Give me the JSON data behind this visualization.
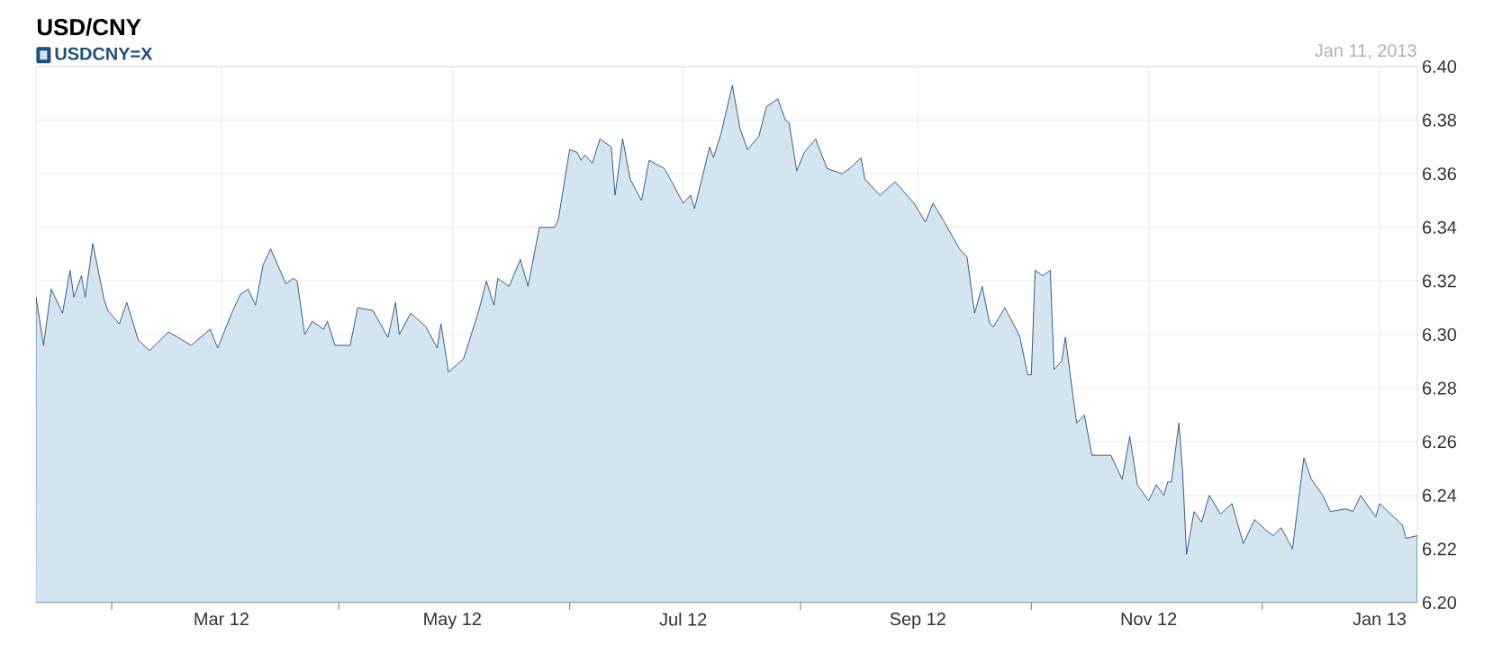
{
  "chart_data": {
    "type": "area",
    "title": "USD/CNY",
    "annotations": [
      "Jan 11, 2013"
    ],
    "legend": "top left",
    "grid": true,
    "xlim": [
      "2012-01-12",
      "2013-01-11"
    ],
    "xticks": [
      {
        "value": "2012-02-01",
        "label": null
      },
      {
        "value": "2012-03-01",
        "label": "Mar 12"
      },
      {
        "value": "2012-04-01",
        "label": null
      },
      {
        "value": "2012-05-01",
        "label": "May 12"
      },
      {
        "value": "2012-06-01",
        "label": null
      },
      {
        "value": "2012-07-01",
        "label": "Jul 12"
      },
      {
        "value": "2012-08-01",
        "label": null
      },
      {
        "value": "2012-09-01",
        "label": "Sep 12"
      },
      {
        "value": "2012-10-01",
        "label": null
      },
      {
        "value": "2012-11-01",
        "label": "Nov 12"
      },
      {
        "value": "2012-12-01",
        "label": null
      },
      {
        "value": "2013-01-01",
        "label": "Jan 13"
      }
    ],
    "ylim": [
      6.2,
      6.4
    ],
    "yticks": [
      {
        "value": 6.2,
        "label": "6.20"
      },
      6.22,
      6.24,
      6.26,
      6.28,
      {
        "value": 6.3,
        "label": "6.30"
      },
      6.32,
      6.34,
      6.36,
      6.38,
      {
        "value": 6.4,
        "label": "6.40"
      }
    ],
    "series": [
      {
        "name": "USDCNY=X",
        "color": "#d5e5f0",
        "x": [
          "2012-01-12",
          "2012-01-14",
          "2012-01-16",
          "2012-01-19",
          "2012-01-21",
          "2012-01-22",
          "2012-01-24",
          "2012-01-25",
          "2012-01-27",
          "2012-01-30",
          "2012-01-31",
          "2012-02-03",
          "2012-02-05",
          "2012-02-08",
          "2012-02-11",
          "2012-02-16",
          "2012-02-22",
          "2012-02-27",
          "2012-02-29",
          "2012-03-04",
          "2012-03-06",
          "2012-03-08",
          "2012-03-10",
          "2012-03-12",
          "2012-03-14",
          "2012-03-18",
          "2012-03-20",
          "2012-03-21",
          "2012-03-23",
          "2012-03-25",
          "2012-03-28",
          "2012-03-29",
          "2012-03-31",
          "2012-04-04",
          "2012-04-06",
          "2012-04-10",
          "2012-04-14",
          "2012-04-16",
          "2012-04-17",
          "2012-04-20",
          "2012-04-24",
          "2012-04-27",
          "2012-04-28",
          "2012-04-30",
          "2012-05-04",
          "2012-05-08",
          "2012-05-10",
          "2012-05-12",
          "2012-05-13",
          "2012-05-16",
          "2012-05-19",
          "2012-05-21",
          "2012-05-24",
          "2012-05-28",
          "2012-05-29",
          "2012-06-01",
          "2012-06-03",
          "2012-06-04",
          "2012-06-05",
          "2012-06-07",
          "2012-06-09",
          "2012-06-12",
          "2012-06-13",
          "2012-06-15",
          "2012-06-17",
          "2012-06-20",
          "2012-06-22",
          "2012-06-26",
          "2012-06-28",
          "2012-07-01",
          "2012-07-03",
          "2012-07-04",
          "2012-07-08",
          "2012-07-09",
          "2012-07-11",
          "2012-07-14",
          "2012-07-16",
          "2012-07-18",
          "2012-07-21",
          "2012-07-23",
          "2012-07-26",
          "2012-07-28",
          "2012-07-29",
          "2012-07-31",
          "2012-08-02",
          "2012-08-05",
          "2012-08-08",
          "2012-08-12",
          "2012-08-14",
          "2012-08-17",
          "2012-08-18",
          "2012-08-22",
          "2012-08-26",
          "2012-08-31",
          "2012-09-03",
          "2012-09-05",
          "2012-09-08",
          "2012-09-12",
          "2012-09-14",
          "2012-09-16",
          "2012-09-18",
          "2012-09-20",
          "2012-09-21",
          "2012-09-24",
          "2012-09-27",
          "2012-09-28",
          "2012-09-30",
          "2012-10-01",
          "2012-10-02",
          "2012-10-04",
          "2012-10-06",
          "2012-10-07",
          "2012-10-09",
          "2012-10-10",
          "2012-10-12",
          "2012-10-13",
          "2012-10-15",
          "2012-10-17",
          "2012-10-22",
          "2012-10-25",
          "2012-10-27",
          "2012-10-29",
          "2012-11-01",
          "2012-11-03",
          "2012-11-05",
          "2012-11-06",
          "2012-11-07",
          "2012-11-09",
          "2012-11-10",
          "2012-11-11",
          "2012-11-13",
          "2012-11-15",
          "2012-11-17",
          "2012-11-20",
          "2012-11-23",
          "2012-11-26",
          "2012-11-29",
          "2012-12-02",
          "2012-12-04",
          "2012-12-06",
          "2012-12-09",
          "2012-12-12",
          "2012-12-14",
          "2012-12-17",
          "2012-12-19",
          "2012-12-23",
          "2012-12-25",
          "2012-12-27",
          "2012-12-31",
          "2013-01-01",
          "2013-01-04",
          "2013-01-07",
          "2013-01-08",
          "2013-01-11"
        ],
        "values": [
          6.314,
          6.296,
          6.317,
          6.308,
          6.324,
          6.314,
          6.322,
          6.314,
          6.334,
          6.313,
          6.309,
          6.304,
          6.312,
          6.298,
          6.294,
          6.301,
          6.296,
          6.302,
          6.295,
          6.309,
          6.315,
          6.317,
          6.311,
          6.326,
          6.332,
          6.319,
          6.321,
          6.32,
          6.3,
          6.305,
          6.302,
          6.305,
          6.296,
          6.296,
          6.31,
          6.309,
          6.299,
          6.312,
          6.3,
          6.308,
          6.303,
          6.295,
          6.304,
          6.286,
          6.291,
          6.309,
          6.32,
          6.311,
          6.321,
          6.318,
          6.328,
          6.318,
          6.34,
          6.34,
          6.343,
          6.369,
          6.368,
          6.365,
          6.367,
          6.364,
          6.373,
          6.37,
          6.352,
          6.373,
          6.358,
          6.35,
          6.365,
          6.362,
          6.357,
          6.349,
          6.352,
          6.347,
          6.37,
          6.366,
          6.375,
          6.393,
          6.377,
          6.369,
          6.374,
          6.385,
          6.388,
          6.38,
          6.379,
          6.361,
          6.368,
          6.373,
          6.362,
          6.36,
          6.362,
          6.366,
          6.358,
          6.352,
          6.357,
          6.349,
          6.342,
          6.349,
          6.342,
          6.332,
          6.329,
          6.308,
          6.318,
          6.304,
          6.303,
          6.31,
          6.302,
          6.299,
          6.285,
          6.285,
          6.324,
          6.322,
          6.324,
          6.287,
          6.29,
          6.299,
          6.277,
          6.267,
          6.27,
          6.255,
          6.255,
          6.246,
          6.262,
          6.244,
          6.238,
          6.244,
          6.24,
          6.245,
          6.245,
          6.267,
          6.248,
          6.218,
          6.234,
          6.23,
          6.24,
          6.233,
          6.237,
          6.222,
          6.231,
          6.227,
          6.225,
          6.228,
          6.22,
          6.254,
          6.246,
          6.24,
          6.234,
          6.235,
          6.234,
          6.24,
          6.232,
          6.237,
          6.233,
          6.229,
          6.224,
          6.225
        ]
      }
    ]
  }
}
